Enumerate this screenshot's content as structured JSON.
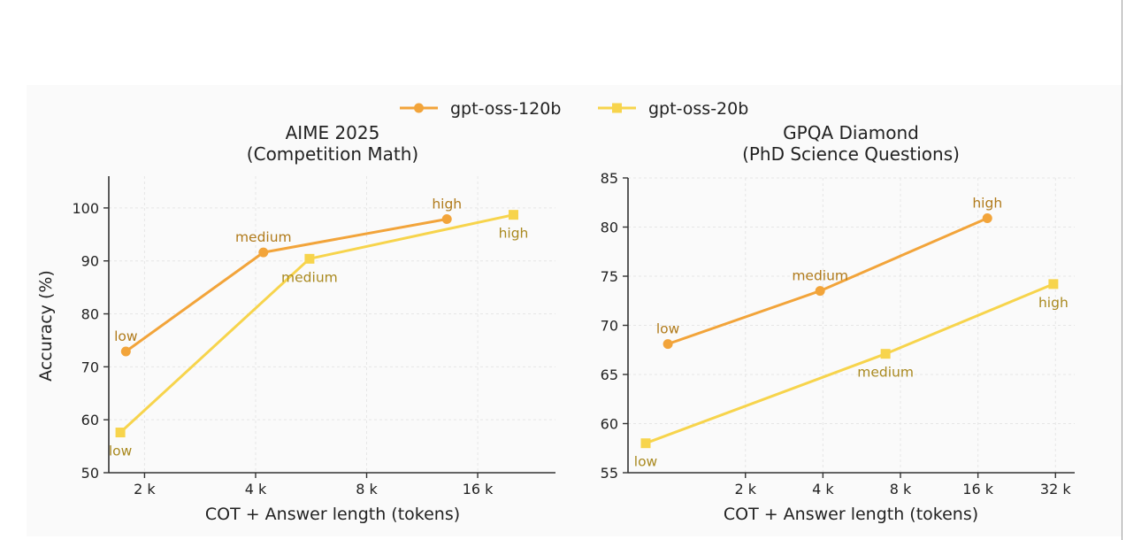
{
  "colors": {
    "gpt-oss-120b": "#f2a43a",
    "gpt-oss-20b": "#f7d44c",
    "label_120b": "#b07a1a",
    "label_20b": "#a9891f"
  },
  "legend": [
    {
      "name": "gpt-oss-120b",
      "marker": "circle"
    },
    {
      "name": "gpt-oss-20b",
      "marker": "square"
    }
  ],
  "chart_data": [
    {
      "type": "line",
      "title": [
        "AIME 2025",
        "(Competition Math)"
      ],
      "xlabel": "COT + Answer length (tokens)",
      "ylabel": "Accuracy (%)",
      "x_scale": "log2",
      "xlim": [
        1.6,
        26
      ],
      "ylim": [
        50,
        106
      ],
      "xticks": [
        {
          "value": 2,
          "label": "2 k"
        },
        {
          "value": 4,
          "label": "4 k"
        },
        {
          "value": 8,
          "label": "8 k"
        },
        {
          "value": 16,
          "label": "16 k"
        }
      ],
      "yticks": [
        50,
        60,
        70,
        80,
        90,
        100
      ],
      "grid": true,
      "series": [
        {
          "name": "gpt-oss-120b",
          "marker": "circle",
          "points": [
            {
              "x": 1.78,
              "y": 72.9,
              "label": "low",
              "label_pos": "above"
            },
            {
              "x": 4.2,
              "y": 91.6,
              "label": "medium",
              "label_pos": "above"
            },
            {
              "x": 13.2,
              "y": 97.9,
              "label": "high",
              "label_pos": "above"
            }
          ]
        },
        {
          "name": "gpt-oss-20b",
          "marker": "square",
          "points": [
            {
              "x": 1.72,
              "y": 57.6,
              "label": "low",
              "label_pos": "below"
            },
            {
              "x": 5.6,
              "y": 90.4,
              "label": "medium",
              "label_pos": "below"
            },
            {
              "x": 20.0,
              "y": 98.7,
              "label": "high",
              "label_pos": "below"
            }
          ]
        }
      ]
    },
    {
      "type": "line",
      "title": [
        "GPQA Diamond",
        "(PhD Science Questions)"
      ],
      "xlabel": "COT + Answer length (tokens)",
      "ylabel": "",
      "x_scale": "log2",
      "xlim": [
        0.7,
        38
      ],
      "ylim": [
        55,
        85
      ],
      "xticks": [
        {
          "value": 2,
          "label": "2 k"
        },
        {
          "value": 4,
          "label": "4 k"
        },
        {
          "value": 8,
          "label": "8 k"
        },
        {
          "value": 16,
          "label": "16 k"
        },
        {
          "value": 32,
          "label": "32 k"
        }
      ],
      "yticks": [
        55,
        60,
        65,
        70,
        75,
        80,
        85
      ],
      "grid": true,
      "series": [
        {
          "name": "gpt-oss-120b",
          "marker": "circle",
          "points": [
            {
              "x": 1.0,
              "y": 68.1,
              "label": "low",
              "label_pos": "above"
            },
            {
              "x": 3.9,
              "y": 73.5,
              "label": "medium",
              "label_pos": "above"
            },
            {
              "x": 17.4,
              "y": 80.9,
              "label": "high",
              "label_pos": "above"
            }
          ]
        },
        {
          "name": "gpt-oss-20b",
          "marker": "square",
          "points": [
            {
              "x": 0.82,
              "y": 58.0,
              "label": "low",
              "label_pos": "below"
            },
            {
              "x": 7.0,
              "y": 67.1,
              "label": "medium",
              "label_pos": "below"
            },
            {
              "x": 31.4,
              "y": 74.2,
              "label": "high",
              "label_pos": "below"
            }
          ]
        }
      ]
    }
  ]
}
